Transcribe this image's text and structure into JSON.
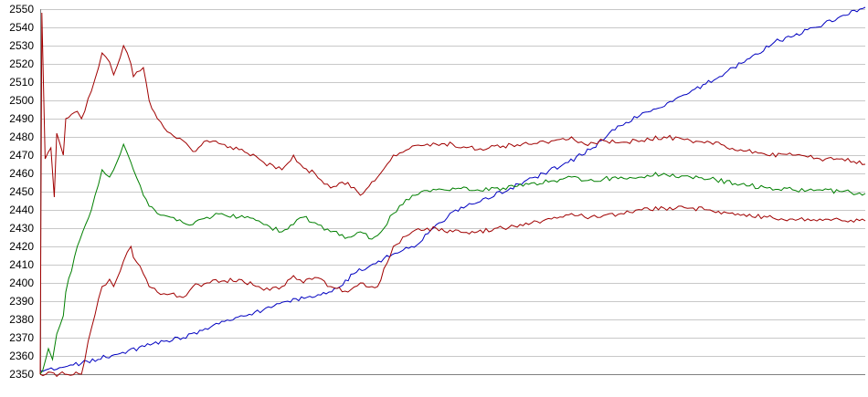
{
  "chart_data": {
    "type": "line",
    "title": "",
    "xlabel": "",
    "ylabel": "",
    "ylim": [
      2350,
      2550
    ],
    "yticks": [
      2350,
      2360,
      2370,
      2380,
      2390,
      2400,
      2410,
      2420,
      2430,
      2440,
      2450,
      2460,
      2470,
      2480,
      2490,
      2500,
      2510,
      2520,
      2530,
      2540,
      2550
    ],
    "xlim": [
      0,
      100
    ],
    "grid": "horizontal",
    "series": [
      {
        "color": "#0000c0",
        "values": [
          [
            0,
            2352
          ],
          [
            3,
            2354
          ],
          [
            5,
            2356
          ],
          [
            10,
            2362
          ],
          [
            15,
            2368
          ],
          [
            19,
            2372
          ],
          [
            20,
            2375
          ],
          [
            22,
            2379
          ],
          [
            25,
            2382
          ],
          [
            27,
            2385
          ],
          [
            30,
            2390
          ],
          [
            35,
            2395
          ],
          [
            36,
            2397
          ],
          [
            38,
            2405
          ],
          [
            41,
            2412
          ],
          [
            44,
            2418
          ],
          [
            46,
            2422
          ],
          [
            47,
            2427
          ],
          [
            50,
            2439
          ],
          [
            53,
            2444
          ],
          [
            57,
            2452
          ],
          [
            60,
            2458
          ],
          [
            64,
            2466
          ],
          [
            67,
            2474
          ],
          [
            68,
            2478
          ],
          [
            70,
            2486
          ],
          [
            74,
            2494
          ],
          [
            78,
            2503
          ],
          [
            82,
            2512
          ],
          [
            84,
            2518
          ],
          [
            86,
            2523
          ],
          [
            89,
            2532
          ],
          [
            94,
            2540
          ],
          [
            97,
            2546
          ],
          [
            100,
            2551
          ]
        ]
      },
      {
        "color": "#a00000",
        "values": [
          [
            0,
            2350
          ],
          [
            0.2,
            2548
          ],
          [
            0.6,
            2468
          ],
          [
            1.3,
            2474
          ],
          [
            1.7,
            2447
          ],
          [
            2,
            2482
          ],
          [
            2.8,
            2470
          ],
          [
            3.1,
            2490
          ],
          [
            4.5,
            2494
          ],
          [
            5,
            2490
          ],
          [
            6.2,
            2505
          ],
          [
            7.5,
            2526
          ],
          [
            8.4,
            2521
          ],
          [
            8.9,
            2514
          ],
          [
            10.1,
            2530
          ],
          [
            11,
            2520
          ],
          [
            11.3,
            2513
          ],
          [
            12.5,
            2518
          ],
          [
            13.2,
            2500
          ],
          [
            14.2,
            2490
          ],
          [
            15.8,
            2482
          ],
          [
            17.3,
            2478
          ],
          [
            18.5,
            2472
          ],
          [
            20.2,
            2478
          ],
          [
            22,
            2476
          ],
          [
            24.1,
            2473
          ],
          [
            26.5,
            2468
          ],
          [
            27.1,
            2466
          ],
          [
            29.3,
            2462
          ],
          [
            30.7,
            2470
          ],
          [
            31.9,
            2463
          ],
          [
            33.3,
            2460
          ],
          [
            35.2,
            2452
          ],
          [
            37.3,
            2455
          ],
          [
            38.8,
            2448
          ],
          [
            40.9,
            2458
          ],
          [
            42.8,
            2470
          ],
          [
            45.1,
            2475
          ],
          [
            48,
            2476
          ],
          [
            50,
            2476
          ],
          [
            53,
            2473
          ],
          [
            56.1,
            2475
          ],
          [
            59.2,
            2476
          ],
          [
            62.3,
            2478
          ],
          [
            64.4,
            2480
          ],
          [
            66,
            2476
          ],
          [
            68.3,
            2478
          ],
          [
            70.4,
            2477
          ],
          [
            72.9,
            2478
          ],
          [
            75.6,
            2480
          ],
          [
            78.8,
            2478
          ],
          [
            81.2,
            2477
          ],
          [
            84.9,
            2473
          ],
          [
            88.1,
            2470
          ],
          [
            91.2,
            2470
          ],
          [
            94.5,
            2468
          ],
          [
            97.2,
            2468
          ],
          [
            100,
            2465
          ]
        ]
      },
      {
        "color": "#007f00",
        "values": [
          [
            0,
            2350
          ],
          [
            0.3,
            2352
          ],
          [
            1,
            2364
          ],
          [
            1.5,
            2358
          ],
          [
            2,
            2372
          ],
          [
            2.8,
            2382
          ],
          [
            3.1,
            2395
          ],
          [
            4.5,
            2420
          ],
          [
            5.5,
            2432
          ],
          [
            6.2,
            2440
          ],
          [
            7.5,
            2462
          ],
          [
            8.4,
            2458
          ],
          [
            8.9,
            2462
          ],
          [
            10.1,
            2476
          ],
          [
            11,
            2466
          ],
          [
            11.3,
            2462
          ],
          [
            12.5,
            2448
          ],
          [
            13.2,
            2442
          ],
          [
            14.2,
            2438
          ],
          [
            15.8,
            2436
          ],
          [
            17.3,
            2433
          ],
          [
            18.5,
            2432
          ],
          [
            20.2,
            2436
          ],
          [
            22,
            2438
          ],
          [
            24.1,
            2436
          ],
          [
            26.5,
            2434
          ],
          [
            27.1,
            2432
          ],
          [
            29.3,
            2428
          ],
          [
            30.7,
            2432
          ],
          [
            31.9,
            2436
          ],
          [
            33.3,
            2433
          ],
          [
            35.2,
            2428
          ],
          [
            37.3,
            2425
          ],
          [
            38.8,
            2428
          ],
          [
            40.2,
            2424
          ],
          [
            40.9,
            2426
          ],
          [
            42.8,
            2438
          ],
          [
            45.1,
            2448
          ],
          [
            48,
            2451
          ],
          [
            50,
            2452
          ],
          [
            53,
            2451
          ],
          [
            56.1,
            2452
          ],
          [
            59.2,
            2454
          ],
          [
            62.3,
            2456
          ],
          [
            64.4,
            2458
          ],
          [
            66,
            2456
          ],
          [
            68.3,
            2457
          ],
          [
            70.4,
            2458
          ],
          [
            72.9,
            2458
          ],
          [
            75.6,
            2460
          ],
          [
            78.8,
            2458
          ],
          [
            81.2,
            2457
          ],
          [
            84.9,
            2454
          ],
          [
            88.1,
            2452
          ],
          [
            91.2,
            2451
          ],
          [
            94.5,
            2451
          ],
          [
            97.2,
            2450
          ],
          [
            100,
            2449
          ]
        ]
      },
      {
        "color": "#a00000",
        "values": [
          [
            0,
            2350
          ],
          [
            5,
            2350
          ],
          [
            6.2,
            2375
          ],
          [
            7.5,
            2398
          ],
          [
            8.4,
            2402
          ],
          [
            8.9,
            2398
          ],
          [
            10.1,
            2412
          ],
          [
            11,
            2420
          ],
          [
            11.3,
            2414
          ],
          [
            12.5,
            2405
          ],
          [
            13.2,
            2398
          ],
          [
            14.2,
            2395
          ],
          [
            15.8,
            2394
          ],
          [
            17.3,
            2392
          ],
          [
            18.5,
            2398
          ],
          [
            20.2,
            2400
          ],
          [
            22,
            2401
          ],
          [
            24.1,
            2402
          ],
          [
            26.5,
            2398
          ],
          [
            27.1,
            2396
          ],
          [
            29.3,
            2398
          ],
          [
            30.7,
            2404
          ],
          [
            31.9,
            2400
          ],
          [
            33.3,
            2403
          ],
          [
            35.2,
            2398
          ],
          [
            37.3,
            2395
          ],
          [
            38.8,
            2400
          ],
          [
            40.2,
            2398
          ],
          [
            40.9,
            2398
          ],
          [
            42.8,
            2420
          ],
          [
            45.1,
            2428
          ],
          [
            48,
            2430
          ],
          [
            50,
            2428
          ],
          [
            53,
            2428
          ],
          [
            56.1,
            2430
          ],
          [
            59.2,
            2432
          ],
          [
            62.3,
            2436
          ],
          [
            64.4,
            2438
          ],
          [
            66,
            2436
          ],
          [
            68.3,
            2437
          ],
          [
            70.4,
            2438
          ],
          [
            72.9,
            2440
          ],
          [
            75.6,
            2441
          ],
          [
            78.8,
            2441
          ],
          [
            81.2,
            2440
          ],
          [
            84.9,
            2437
          ],
          [
            88.1,
            2436
          ],
          [
            91.2,
            2435
          ],
          [
            94.5,
            2435
          ],
          [
            97.2,
            2434
          ],
          [
            100,
            2434
          ]
        ]
      }
    ]
  }
}
